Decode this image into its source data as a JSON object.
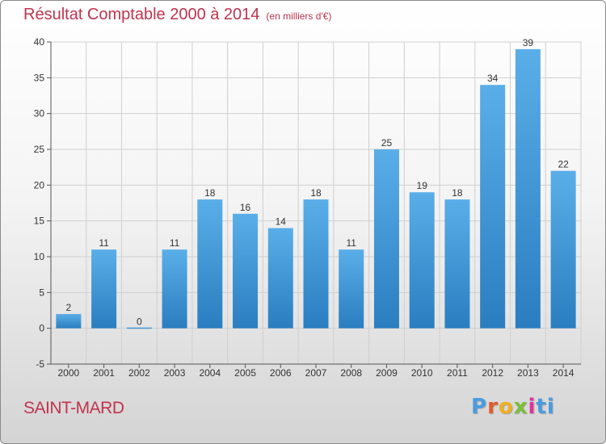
{
  "header": {
    "title": "Résultat Comptable 2000 à 2014",
    "subtitle": "(en milliers d'€)"
  },
  "footer": {
    "town": "SAINT-MARD",
    "logo": "Proxiti"
  },
  "colors": {
    "title": "#c0334d",
    "bar_light": "#5aaee8",
    "bar_dark": "#2a7ec0",
    "grid": "#cfcfcf"
  },
  "chart_data": {
    "type": "bar",
    "title": "Résultat Comptable 2000 à 2014",
    "subtitle": "(en milliers d'€)",
    "xlabel": "",
    "ylabel": "",
    "categories": [
      "2000",
      "2001",
      "2002",
      "2003",
      "2004",
      "2005",
      "2006",
      "2007",
      "2008",
      "2009",
      "2010",
      "2011",
      "2012",
      "2013",
      "2014"
    ],
    "values": [
      2,
      11,
      0,
      11,
      18,
      16,
      14,
      18,
      11,
      25,
      19,
      18,
      34,
      39,
      22
    ],
    "ylim": [
      -5,
      40
    ],
    "yticks": [
      -5,
      0,
      5,
      10,
      15,
      20,
      25,
      30,
      35,
      40
    ],
    "grid": true,
    "legend": "none"
  }
}
